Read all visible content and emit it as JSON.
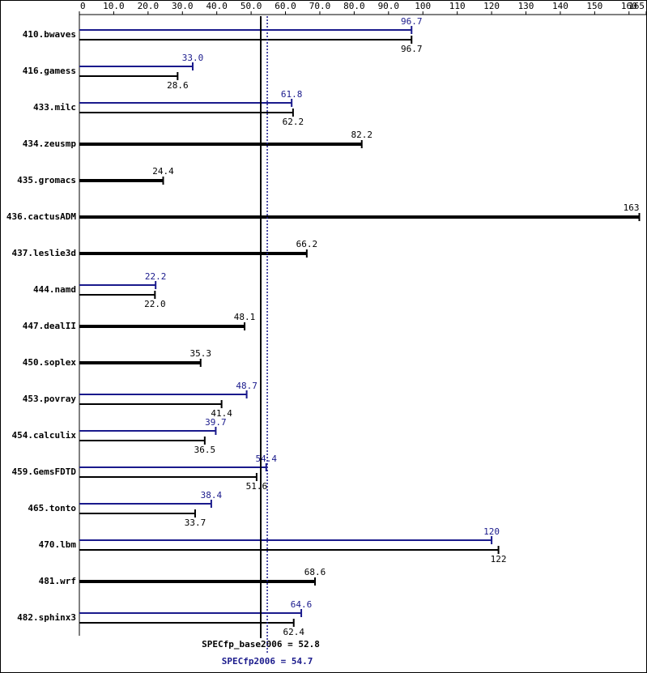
{
  "chart_data": {
    "type": "bar",
    "orientation": "horizontal",
    "categories": [
      "410.bwaves",
      "416.gamess",
      "433.milc",
      "434.zeusmp",
      "435.gromacs",
      "436.cactusADM",
      "437.leslie3d",
      "444.namd",
      "447.dealII",
      "450.soplex",
      "453.povray",
      "454.calculix",
      "459.GemsFDTD",
      "465.tonto",
      "470.lbm",
      "481.wrf",
      "482.sphinx3"
    ],
    "series": [
      {
        "color": "#1a1a8c",
        "values": [
          96.7,
          33.0,
          61.8,
          null,
          null,
          null,
          null,
          22.2,
          null,
          null,
          48.7,
          39.7,
          54.4,
          38.4,
          120,
          null,
          64.6
        ],
        "value_labels": [
          "96.7",
          "33.0",
          "61.8",
          null,
          null,
          null,
          null,
          "22.2",
          null,
          null,
          "48.7",
          "39.7",
          "54.4",
          "38.4",
          "120",
          null,
          "64.6"
        ]
      },
      {
        "color": "#000000",
        "values": [
          96.7,
          28.6,
          62.2,
          82.2,
          24.4,
          163,
          66.2,
          22.0,
          48.1,
          35.3,
          41.4,
          36.5,
          51.6,
          33.7,
          122,
          68.6,
          62.4
        ],
        "value_labels": [
          "96.7",
          "28.6",
          "62.2",
          "82.2",
          "24.4",
          "163",
          "66.2",
          "22.0",
          "48.1",
          "35.3",
          "41.4",
          "36.5",
          "51.6",
          "33.7",
          "122",
          "68.6",
          "62.4"
        ]
      }
    ],
    "xlim": [
      0,
      165
    ],
    "xticks": [
      0,
      {
        "value": 10,
        "label": "10.0"
      },
      {
        "value": 20,
        "label": "20.0"
      },
      {
        "value": 30,
        "label": "30.0"
      },
      {
        "value": 40,
        "label": "40.0"
      },
      {
        "value": 50,
        "label": "50.0"
      },
      {
        "value": 60,
        "label": "60.0"
      },
      {
        "value": 70,
        "label": "70.0"
      },
      {
        "value": 80,
        "label": "80.0"
      },
      {
        "value": 90,
        "label": "90.0"
      },
      100,
      110,
      120,
      130,
      140,
      150,
      160,
      165
    ],
    "reference_lines": [
      {
        "label": "SPECfp_base2006 = 52.8",
        "value": 52.8,
        "color": "#000000"
      },
      {
        "label": "SPECfp2006 = 54.7",
        "value": 54.7,
        "color": "#1a1a8c"
      }
    ]
  }
}
